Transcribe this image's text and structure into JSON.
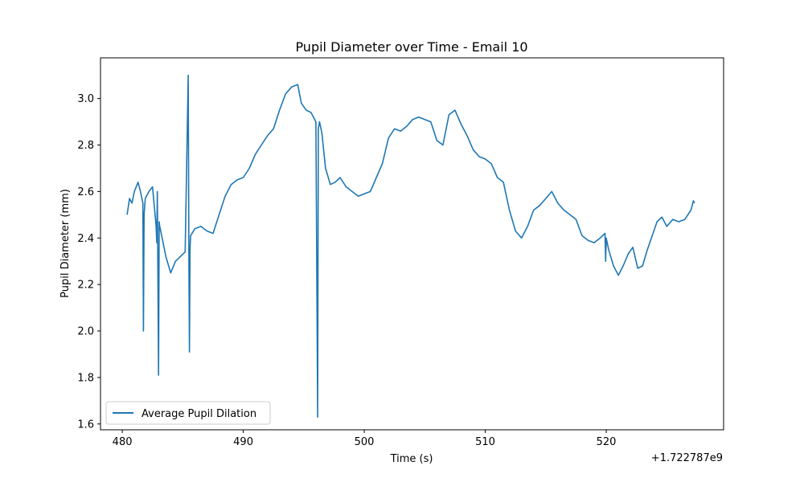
{
  "chart_data": {
    "type": "line",
    "title": "Pupil Diameter over Time - Email 10",
    "xlabel": "Time (s)",
    "ylabel": "Pupil Diameter (mm)",
    "x_offset_label": "+1.722787e9",
    "xlim": [
      478.2,
      529.7
    ],
    "ylim": [
      1.575,
      3.175
    ],
    "xticks": [
      480,
      490,
      500,
      510,
      520
    ],
    "yticks": [
      1.6,
      1.8,
      2.0,
      2.2,
      2.4,
      2.6,
      2.8,
      3.0
    ],
    "xtick_labels": [
      "480",
      "490",
      "500",
      "510",
      "520"
    ],
    "ytick_labels": [
      "1.6",
      "1.8",
      "2.0",
      "2.2",
      "2.4",
      "2.6",
      "2.8",
      "3.0"
    ],
    "grid": false,
    "legend_position": "lower-left",
    "color": "#1f77b4",
    "series": [
      {
        "name": "Average Pupil Dilation",
        "x": [
          480.4,
          480.6,
          480.8,
          481.0,
          481.3,
          481.5,
          481.7,
          481.75,
          481.8,
          481.9,
          482.2,
          482.5,
          482.8,
          482.85,
          482.9,
          483.0,
          483.05,
          483.1,
          483.3,
          483.6,
          484.0,
          484.4,
          484.8,
          485.2,
          485.45,
          485.5,
          485.55,
          485.6,
          485.65,
          486.0,
          486.5,
          487.0,
          487.5,
          488.0,
          488.5,
          489.0,
          489.5,
          490.0,
          490.5,
          491.0,
          491.5,
          492.0,
          492.5,
          493.0,
          493.5,
          494.0,
          494.5,
          494.8,
          495.2,
          495.6,
          496.0,
          496.15,
          496.2,
          496.3,
          496.5,
          496.8,
          497.2,
          497.6,
          498.0,
          498.5,
          499.0,
          499.5,
          500.0,
          500.5,
          501.0,
          501.5,
          502.0,
          502.5,
          503.0,
          503.5,
          504.0,
          504.5,
          505.0,
          505.5,
          506.0,
          506.5,
          507.0,
          507.5,
          508.0,
          508.5,
          509.0,
          509.5,
          510.0,
          510.5,
          511.0,
          511.5,
          512.0,
          512.5,
          513.0,
          513.5,
          514.0,
          514.5,
          515.0,
          515.5,
          516.0,
          516.5,
          517.0,
          517.5,
          518.0,
          518.5,
          519.0,
          519.5,
          519.9,
          519.95,
          520.0,
          520.2,
          520.6,
          521.0,
          521.4,
          521.8,
          522.2,
          522.6,
          523.0,
          523.4,
          523.8,
          524.2,
          524.6,
          525.0,
          525.5,
          526.0,
          526.5,
          527.0,
          527.2,
          527.3
        ],
        "y": [
          2.5,
          2.57,
          2.55,
          2.6,
          2.64,
          2.6,
          2.55,
          2.0,
          2.5,
          2.57,
          2.6,
          2.62,
          2.45,
          2.38,
          2.6,
          1.81,
          2.47,
          2.45,
          2.4,
          2.32,
          2.25,
          2.3,
          2.32,
          2.34,
          3.1,
          2.35,
          1.91,
          2.36,
          2.41,
          2.44,
          2.45,
          2.43,
          2.42,
          2.5,
          2.58,
          2.63,
          2.65,
          2.66,
          2.7,
          2.76,
          2.8,
          2.84,
          2.87,
          2.95,
          3.02,
          3.05,
          3.06,
          2.98,
          2.95,
          2.94,
          2.9,
          1.63,
          2.87,
          2.9,
          2.85,
          2.7,
          2.63,
          2.64,
          2.66,
          2.62,
          2.6,
          2.58,
          2.59,
          2.6,
          2.66,
          2.72,
          2.83,
          2.87,
          2.86,
          2.88,
          2.91,
          2.92,
          2.91,
          2.9,
          2.82,
          2.8,
          2.93,
          2.95,
          2.89,
          2.84,
          2.78,
          2.75,
          2.74,
          2.72,
          2.66,
          2.64,
          2.52,
          2.43,
          2.4,
          2.45,
          2.52,
          2.54,
          2.57,
          2.6,
          2.55,
          2.52,
          2.5,
          2.48,
          2.41,
          2.39,
          2.38,
          2.4,
          2.42,
          2.3,
          2.4,
          2.35,
          2.28,
          2.24,
          2.28,
          2.33,
          2.36,
          2.27,
          2.28,
          2.35,
          2.41,
          2.47,
          2.49,
          2.45,
          2.48,
          2.47,
          2.48,
          2.52,
          2.56,
          2.55
        ]
      }
    ]
  }
}
